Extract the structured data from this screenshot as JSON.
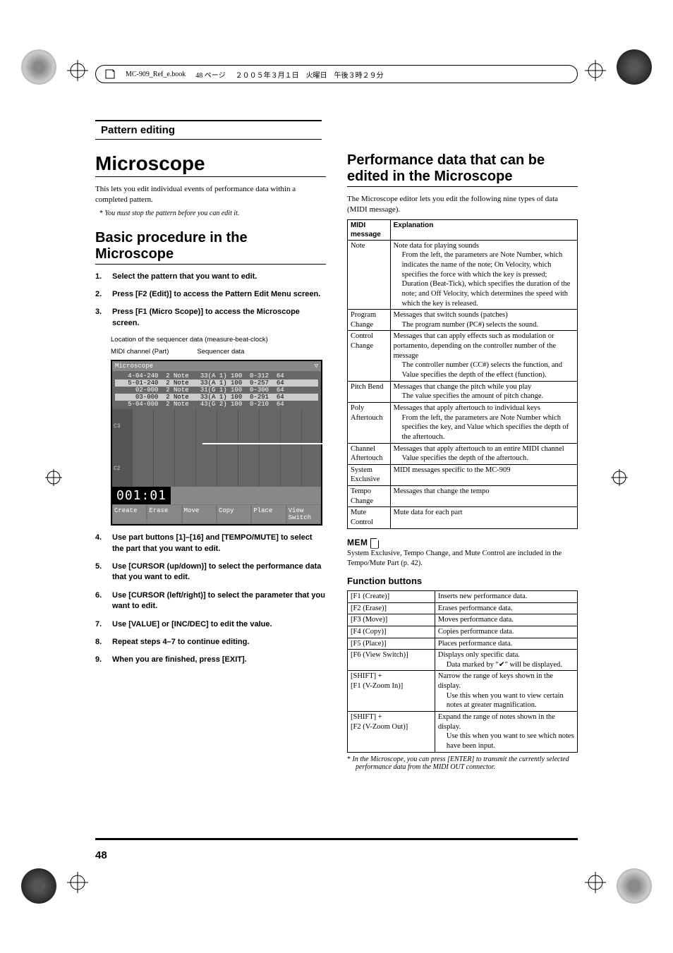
{
  "header": {
    "book": "MC-909_Ref_e.book",
    "page_marker": "48 ページ",
    "date": "２００５年３月１日　火曜日　午後３時２９分"
  },
  "section_title": "Pattern editing",
  "left": {
    "h1": "Microscope",
    "intro": "This lets you edit individual events of performance data within a completed pattern.",
    "intro_note": "You must stop the pattern before you can edit it.",
    "h2": "Basic procedure in the Microscope",
    "steps": [
      "Select the pattern that you want to edit.",
      "Press [F2 (Edit)] to access the Pattern Edit Menu screen.",
      "Press [F1 (Micro Scope)] to access the Microscope screen.",
      "Use part buttons [1]–[16] and [TEMPO/MUTE] to select the part that you want to edit.",
      "Use [CURSOR (up/down)] to select the performance data that you want to edit.",
      "Use [CURSOR (left/right)] to select the parameter that you want to edit.",
      "Use [VALUE] or [INC/DEC] to edit the value.",
      "Repeat steps 4–7 to continue editing.",
      "When you are finished, press [EXIT]."
    ],
    "annotations": {
      "loc": "Location of the sequencer data (measure-beat-clock)",
      "midi": "MIDI channel (Part)",
      "seq": "Sequencer data"
    },
    "screenshot": {
      "title": "Microscope",
      "rows": [
        {
          "loc": "4-04-240",
          "ch": "2",
          "ev": "Note",
          "d1": "33(A 1)",
          "d2": "100",
          "d3": "0-312",
          "d4": "64",
          "hl": false
        },
        {
          "loc": "5-01-240",
          "ch": "2",
          "ev": "Note",
          "d1": "33(A 1)",
          "d2": "100",
          "d3": "0-257",
          "d4": "64",
          "hl": true
        },
        {
          "loc": "02-000",
          "ch": "2",
          "ev": "Note",
          "d1": "31(G 1)",
          "d2": "100",
          "d3": "0-300",
          "d4": "64",
          "hl": false
        },
        {
          "loc": "03-000",
          "ch": "2",
          "ev": "Note",
          "d1": "33(A 1)",
          "d2": "100",
          "d3": "0-291",
          "d4": "64",
          "hl": true
        },
        {
          "loc": "5-04-000",
          "ch": "2",
          "ev": "Note",
          "d1": "43(G 2)",
          "d2": "100",
          "d3": "0-210",
          "d4": "64",
          "hl": false
        }
      ],
      "counter": "001:01",
      "buttons": [
        "Create",
        "Erase",
        "Move",
        "Copy",
        "Place",
        "View Switch"
      ]
    }
  },
  "right": {
    "h2": "Performance data that can be edited in the Microscope",
    "intro": "The Microscope editor lets you edit the following nine types of data (MIDI message).",
    "table_headers": [
      "MIDI message",
      "Explanation"
    ],
    "midi_table": [
      {
        "msg": "Note",
        "exp": "Note data for playing sounds",
        "sub": "From the left, the parameters are Note Number, which indicates the name of the note; On Velocity, which specifies the force with which the key is pressed; Duration (Beat-Tick), which specifies the duration of the note; and Off Velocity, which determines the speed with which the key is released."
      },
      {
        "msg": "Program Change",
        "exp": "Messages that switch sounds (patches)",
        "sub": "The program number (PC#) selects the sound."
      },
      {
        "msg": "Control Change",
        "exp": "Messages that can apply effects such as modulation or portamento, depending on the controller number of the message",
        "sub": "The controller number (CC#) selects the function, and Value specifies the depth of the effect (function)."
      },
      {
        "msg": "Pitch Bend",
        "exp": "Messages that change the pitch while you play",
        "sub": "The value specifies the amount of pitch change."
      },
      {
        "msg": "Poly Aftertouch",
        "exp": "Messages that apply aftertouch to individual keys",
        "sub": "From the left, the parameters are Note Number which specifies the key, and Value which specifies the depth of the aftertouch."
      },
      {
        "msg": "Channel Aftertouch",
        "exp": "Messages that apply aftertouch to an entire MIDI channel",
        "sub": "Value specifies the depth of the aftertouch."
      },
      {
        "msg": "System Exclusive",
        "exp": "MIDI messages specific to the MC-909",
        "sub": ""
      },
      {
        "msg": "Tempo Change",
        "exp": "Messages that change the tempo",
        "sub": ""
      },
      {
        "msg": "Mute Control",
        "exp": "Mute data for each part",
        "sub": ""
      }
    ],
    "memo_label": "MEM",
    "memo_text": "System Exclusive, Tempo Change, and Mute Control are included in the Tempo/Mute Part (p. 42).",
    "fb_title": "Function buttons",
    "fb_table": [
      {
        "k": "[F1 (Create)]",
        "v": "Inserts new performance data."
      },
      {
        "k": "[F2 (Erase)]",
        "v": "Erases performance data."
      },
      {
        "k": "[F3 (Move)]",
        "v": "Moves performance data."
      },
      {
        "k": "[F4 (Copy)]",
        "v": "Copies performance data."
      },
      {
        "k": "[F5 (Place)]",
        "v": "Places performance data."
      },
      {
        "k": "[F6 (View Switch)]",
        "v": "Displays only specific data.",
        "sub": "Data marked by \"✔\" will be displayed."
      },
      {
        "k": "[SHIFT] + [F1 (V-Zoom In)]",
        "v": "Narrow the range of keys shown in the display.",
        "sub": "Use this when you want to view certain notes at greater magnification."
      },
      {
        "k": "[SHIFT] + [F2 (V-Zoom Out)]",
        "v": "Expand the range of notes shown in the display.",
        "sub": "Use this when you want to see which notes have been input."
      }
    ],
    "fb_note": "In the Microscope, you can press [ENTER] to transmit the currently selected performance data from the MIDI OUT connector."
  },
  "page_number": "48",
  "colors": {
    "text": "#000000",
    "bg": "#ffffff",
    "screenshot_bg": "#666666",
    "highlight": "#cccccc"
  }
}
